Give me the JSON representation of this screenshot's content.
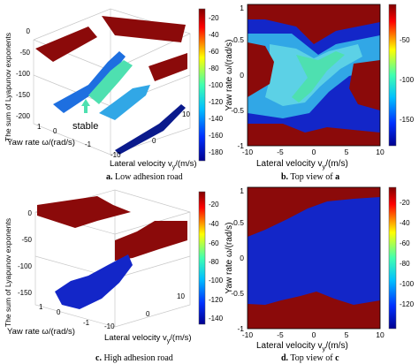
{
  "chart_data": [
    {
      "type": "surface3d",
      "caption_letter": "a.",
      "caption_text": " Low adhesion road",
      "zlabel": "The sum of Lyapunov exponents",
      "xlabel": "Yaw rate ω/(rad/s)",
      "ylabel_main": "Lateral velocity v",
      "ylabel_sub": "y",
      "ylabel_tail": "/(m/s)",
      "z_ticks": [
        "0",
        "-50",
        "-100",
        "-150",
        "-200"
      ],
      "x_ticks": [
        "-1",
        "0",
        "1"
      ],
      "y_ticks": [
        "-10",
        "0",
        "10"
      ],
      "annotation": "stable",
      "colorbar_ticks": [
        "-20",
        "-40",
        "-60",
        "-80",
        "-100",
        "-120",
        "-140",
        "-160",
        "-180"
      ],
      "colorbar_range": [
        -190,
        -10
      ]
    },
    {
      "type": "heatmap",
      "caption_letter": "b.",
      "caption_text": " Top view of ",
      "caption_ref": "a",
      "xlabel_main": "Lateral velocity v",
      "xlabel_sub": "y",
      "xlabel_tail": "/(m/s)",
      "ylabel": "Yaw rate ω/(rad/s)",
      "x_ticks": [
        "-10",
        "-5",
        "0",
        "5",
        "10"
      ],
      "y_ticks": [
        "-1",
        "-0.5",
        "0",
        "0.5",
        "1"
      ],
      "xlim": [
        -10,
        10
      ],
      "ylim": [
        -1,
        1
      ],
      "colorbar_ticks": [
        "-50",
        "-100",
        "-150"
      ],
      "colorbar_range": [
        -190,
        -10
      ]
    },
    {
      "type": "surface3d",
      "caption_letter": "c.",
      "caption_text": " High adhesion road",
      "zlabel": "The sum of Lyapunov exponents",
      "xlabel": "Yaw rate ω/(rad/s)",
      "ylabel_main": "Lateral velocity v",
      "ylabel_sub": "y",
      "ylabel_tail": "/(m/s)",
      "z_ticks": [
        "0",
        "-50",
        "-100",
        "-150"
      ],
      "x_ticks": [
        "-1",
        "0",
        "1"
      ],
      "y_ticks": [
        "-10",
        "0",
        "10"
      ],
      "colorbar_ticks": [
        "-20",
        "-40",
        "-60",
        "-80",
        "-100",
        "-120",
        "-140"
      ],
      "colorbar_range": [
        -150,
        -10
      ]
    },
    {
      "type": "heatmap",
      "caption_letter": "d.",
      "caption_text": " Top view of ",
      "caption_ref": "c",
      "xlabel_main": "Lateral velocity v",
      "xlabel_sub": "y",
      "xlabel_tail": "/(m/s)",
      "ylabel": "Yaw rate ω/(rad/s)",
      "x_ticks": [
        "-10",
        "-5",
        "0",
        "5",
        "10"
      ],
      "y_ticks": [
        "-1",
        "-0.5",
        "0",
        "0.5",
        "1"
      ],
      "xlim": [
        -10,
        10
      ],
      "ylim": [
        -1,
        1
      ],
      "colorbar_ticks": [
        "-20",
        "-40",
        "-60",
        "-80",
        "-100",
        "-120"
      ],
      "colorbar_range": [
        -150,
        -10
      ]
    }
  ],
  "colors": {
    "stable_dark_red": "#8b0a0a",
    "blue": "#1326c8",
    "cyan": "#31a7e6",
    "light_cyan": "#5cd1e6",
    "teal_green": "#4ee0b0",
    "dark_blue": "#0a1a8c"
  }
}
